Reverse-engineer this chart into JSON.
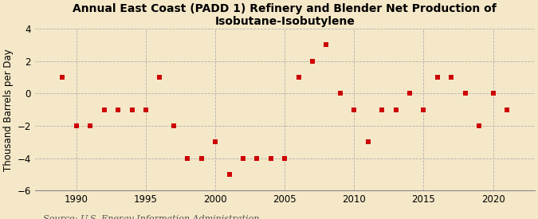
{
  "title": "Annual East Coast (PADD 1) Refinery and Blender Net Production of Isobutane-Isobutylene",
  "ylabel": "Thousand Barrels per Day",
  "source": "Source: U.S. Energy Information Administration",
  "background_color": "#f5e8c8",
  "marker_color": "#cc0000",
  "years": [
    1989,
    1990,
    1991,
    1992,
    1993,
    1994,
    1995,
    1996,
    1997,
    1998,
    1999,
    2000,
    2001,
    2002,
    2003,
    2004,
    2005,
    2006,
    2007,
    2008,
    2009,
    2010,
    2011,
    2012,
    2013,
    2014,
    2015,
    2016,
    2017,
    2018,
    2019,
    2020,
    2021
  ],
  "values": [
    1.0,
    -2.0,
    -2.0,
    -1.0,
    -1.0,
    -1.0,
    -1.0,
    1.0,
    -2.0,
    -4.0,
    -4.0,
    -3.0,
    -5.0,
    -4.0,
    -4.0,
    -4.0,
    -4.0,
    1.0,
    2.0,
    3.0,
    0.0,
    -1.0,
    -3.0,
    -1.0,
    -1.0,
    0.0,
    -1.0,
    1.0,
    1.0,
    0.0,
    -2.0,
    0.0,
    -1.0
  ],
  "ylim": [
    -6,
    4
  ],
  "yticks": [
    -6,
    -4,
    -2,
    0,
    2,
    4
  ],
  "xlim": [
    1987,
    2023
  ],
  "xticks": [
    1990,
    1995,
    2000,
    2005,
    2010,
    2015,
    2020
  ],
  "grid_color": "#b0b0b0",
  "title_fontsize": 10,
  "ylabel_fontsize": 8.5,
  "tick_fontsize": 8.5,
  "source_fontsize": 8
}
